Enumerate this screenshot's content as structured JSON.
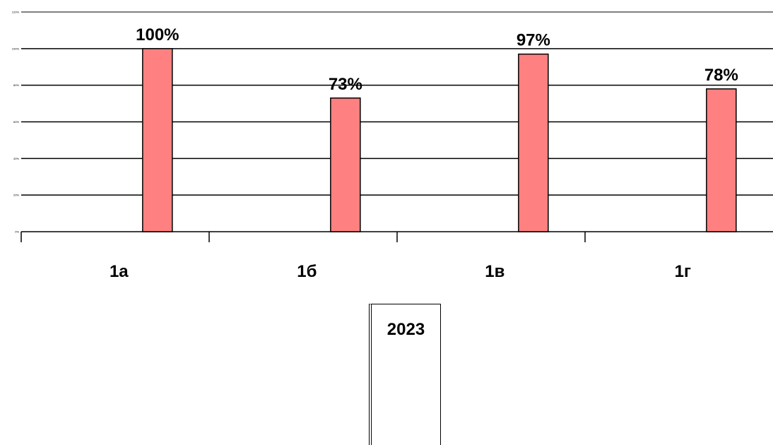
{
  "chart_data": {
    "type": "bar",
    "categories": [
      "1а",
      "1б",
      "1в",
      "1г"
    ],
    "values": [
      100,
      73,
      97,
      78
    ],
    "data_labels": [
      "100%",
      "73%",
      "97%",
      "78%"
    ],
    "ylim": [
      0,
      120
    ],
    "yticks": [
      "0%",
      "20%",
      "40%",
      "60%",
      "80%",
      "100%",
      "120%"
    ],
    "series": [
      {
        "name": "2023",
        "values": [
          100,
          73,
          97,
          78
        ]
      }
    ],
    "colors": {
      "bar": "#ff8080",
      "top_border": "#808080"
    },
    "grid": true
  },
  "legend": {
    "label": "2023"
  }
}
